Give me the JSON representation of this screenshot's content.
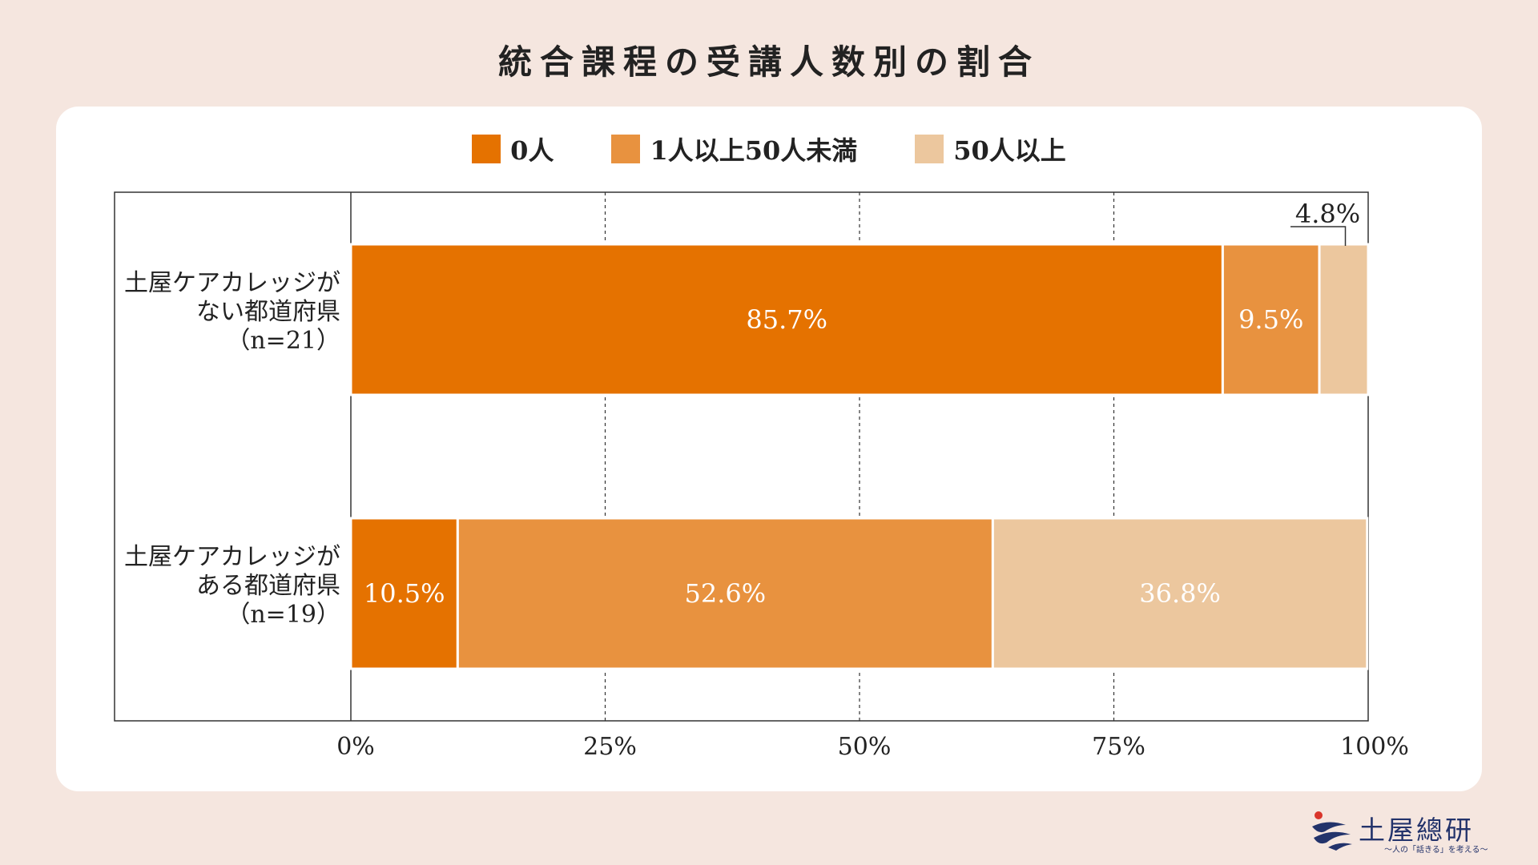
{
  "title": "統合課程の受講人数別の割合",
  "legend": [
    {
      "label": "0人",
      "color": "#e57200"
    },
    {
      "label": "1人以上50人未満",
      "color": "#e8923f"
    },
    {
      "label": "50人以上",
      "color": "#ecc79e"
    }
  ],
  "chart_data": {
    "type": "bar",
    "orientation": "horizontal",
    "stacked": true,
    "categories": [
      [
        "土屋ケアカレッジが",
        "ない都道府県",
        "（n=21）"
      ],
      [
        "土屋ケアカレッジが",
        "ある都道府県",
        "（n=19）"
      ]
    ],
    "series": [
      {
        "name": "0人",
        "color": "#e57200",
        "values": [
          85.7,
          10.5
        ],
        "labels": [
          "85.7%",
          "10.5%"
        ]
      },
      {
        "name": "1人以上50人未満",
        "color": "#e8923f",
        "values": [
          9.5,
          52.6
        ],
        "labels": [
          "9.5%",
          "52.6%"
        ]
      },
      {
        "name": "50人以上",
        "color": "#ecc79e",
        "values": [
          4.8,
          36.8
        ],
        "labels": [
          "4.8%",
          "36.8%"
        ]
      }
    ],
    "xlim": [
      0,
      100
    ],
    "xticks": [
      "0%",
      "25%",
      "50%",
      "75%",
      "100%"
    ],
    "grid": "vertical dashed"
  },
  "logo": {
    "name": "土屋總研",
    "tagline": "〜人の「話きる」を考える〜"
  }
}
